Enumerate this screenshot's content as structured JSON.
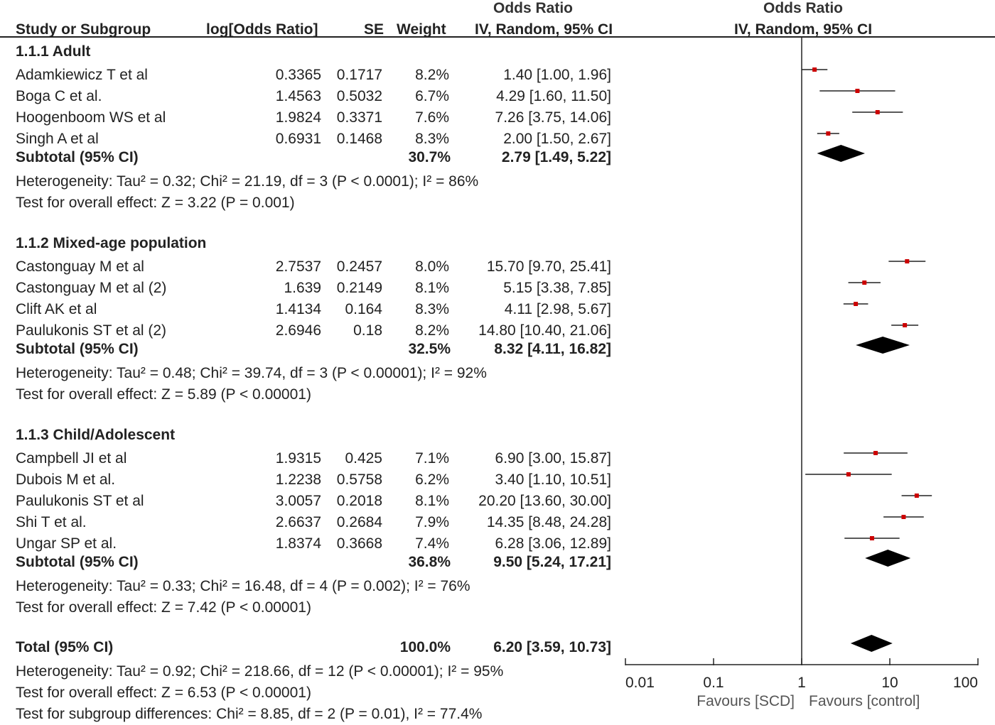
{
  "header": {
    "or_top": "Odds Ratio",
    "study": "Study or Subgroup",
    "logor": "log[Odds Ratio]",
    "se": "SE",
    "weight": "Weight",
    "or_method": "IV, Random, 95% CI",
    "plot_top": "Odds Ratio",
    "plot_method": "IV, Random, 95% CI"
  },
  "groups": [
    {
      "title": "1.1.1 Adult",
      "studies": [
        {
          "name": "Adamkiewicz T et al",
          "logor": "0.3365",
          "se": "0.1717",
          "weight": "8.2%",
          "ci": "1.40 [1.00, 1.96]"
        },
        {
          "name": "Boga C et al.",
          "logor": "1.4563",
          "se": "0.5032",
          "weight": "6.7%",
          "ci": "4.29 [1.60, 11.50]"
        },
        {
          "name": "Hoogenboom WS et al",
          "logor": "1.9824",
          "se": "0.3371",
          "weight": "7.6%",
          "ci": "7.26 [3.75, 14.06]"
        },
        {
          "name": "Singh A et al",
          "logor": "0.6931",
          "se": "0.1468",
          "weight": "8.3%",
          "ci": "2.00 [1.50, 2.67]"
        }
      ],
      "subtotal": {
        "label": "Subtotal (95% CI)",
        "weight": "30.7%",
        "ci": "2.79 [1.49, 5.22]"
      },
      "heterogeneity": "Heterogeneity: Tau² = 0.32; Chi² = 21.19, df = 3 (P < 0.0001); I² = 86%",
      "overall": "Test for overall effect: Z = 3.22 (P = 0.001)"
    },
    {
      "title": "1.1.2 Mixed-age population",
      "studies": [
        {
          "name": "Castonguay M et al",
          "logor": "2.7537",
          "se": "0.2457",
          "weight": "8.0%",
          "ci": "15.70 [9.70, 25.41]"
        },
        {
          "name": "Castonguay M et al (2)",
          "logor": "1.639",
          "se": "0.2149",
          "weight": "8.1%",
          "ci": "5.15 [3.38, 7.85]"
        },
        {
          "name": "Clift AK et al",
          "logor": "1.4134",
          "se": "0.164",
          "weight": "8.3%",
          "ci": "4.11 [2.98, 5.67]"
        },
        {
          "name": "Paulukonis ST et al (2)",
          "logor": "2.6946",
          "se": "0.18",
          "weight": "8.2%",
          "ci": "14.80 [10.40, 21.06]"
        }
      ],
      "subtotal": {
        "label": "Subtotal (95% CI)",
        "weight": "32.5%",
        "ci": "8.32 [4.11, 16.82]"
      },
      "heterogeneity": "Heterogeneity: Tau² = 0.48; Chi² = 39.74, df = 3 (P < 0.00001); I² = 92%",
      "overall": "Test for overall effect: Z = 5.89 (P < 0.00001)"
    },
    {
      "title": "1.1.3 Child/Adolescent",
      "studies": [
        {
          "name": "Campbell JI et al",
          "logor": "1.9315",
          "se": "0.425",
          "weight": "7.1%",
          "ci": "6.90 [3.00, 15.87]"
        },
        {
          "name": "Dubois M et al.",
          "logor": "1.2238",
          "se": "0.5758",
          "weight": "6.2%",
          "ci": "3.40 [1.10, 10.51]"
        },
        {
          "name": "Paulukonis ST et al",
          "logor": "3.0057",
          "se": "0.2018",
          "weight": "8.1%",
          "ci": "20.20 [13.60, 30.00]"
        },
        {
          "name": "Shi T et al.",
          "logor": "2.6637",
          "se": "0.2684",
          "weight": "7.9%",
          "ci": "14.35 [8.48, 24.28]"
        },
        {
          "name": "Ungar SP et al.",
          "logor": "1.8374",
          "se": "0.3668",
          "weight": "7.4%",
          "ci": "6.28 [3.06, 12.89]"
        }
      ],
      "subtotal": {
        "label": "Subtotal (95% CI)",
        "weight": "36.8%",
        "ci": "9.50 [5.24, 17.21]"
      },
      "heterogeneity": "Heterogeneity: Tau² = 0.33; Chi² = 16.48, df = 4 (P = 0.002); I² = 76%",
      "overall": "Test for overall effect: Z = 7.42 (P < 0.00001)"
    }
  ],
  "total": {
    "label": "Total (95% CI)",
    "weight": "100.0%",
    "ci": "6.20 [3.59, 10.73]",
    "heterogeneity": "Heterogeneity: Tau² = 0.92; Chi² = 218.66, df = 12 (P < 0.00001); I² = 95%",
    "overall": "Test for overall effect: Z = 6.53 (P < 0.00001)",
    "subgroup": "Test for subgroup differences: Chi² = 8.85, df = 2 (P = 0.01), I² = 77.4%"
  },
  "axis": {
    "tick_labels": [
      "0.01",
      "0.1",
      "1",
      "10",
      "100"
    ],
    "favours_left": "Favours [SCD]",
    "favours_right": "Favours [control]"
  },
  "colors": {
    "marker": "#cc0000",
    "diamond": "#000000",
    "line": "#222222"
  },
  "chart_data": {
    "type": "forest",
    "scale": "log",
    "xlim": [
      0.01,
      100
    ],
    "ticks": [
      0.01,
      0.1,
      1,
      10,
      100
    ],
    "null_line": 1,
    "studies": [
      {
        "name": "Adamkiewicz T et al",
        "or": 1.4,
        "lo": 1.0,
        "hi": 1.96,
        "weight": 8.2
      },
      {
        "name": "Boga C et al.",
        "or": 4.29,
        "lo": 1.6,
        "hi": 11.5,
        "weight": 6.7
      },
      {
        "name": "Hoogenboom WS et al",
        "or": 7.26,
        "lo": 3.75,
        "hi": 14.06,
        "weight": 7.6
      },
      {
        "name": "Singh A et al",
        "or": 2.0,
        "lo": 1.5,
        "hi": 2.67,
        "weight": 8.3
      },
      {
        "name": "Castonguay M et al",
        "or": 15.7,
        "lo": 9.7,
        "hi": 25.41,
        "weight": 8.0
      },
      {
        "name": "Castonguay M et al (2)",
        "or": 5.15,
        "lo": 3.38,
        "hi": 7.85,
        "weight": 8.1
      },
      {
        "name": "Clift AK et al",
        "or": 4.11,
        "lo": 2.98,
        "hi": 5.67,
        "weight": 8.3
      },
      {
        "name": "Paulukonis ST et al (2)",
        "or": 14.8,
        "lo": 10.4,
        "hi": 21.06,
        "weight": 8.2
      },
      {
        "name": "Campbell JI et al",
        "or": 6.9,
        "lo": 3.0,
        "hi": 15.87,
        "weight": 7.1
      },
      {
        "name": "Dubois M et al.",
        "or": 3.4,
        "lo": 1.1,
        "hi": 10.51,
        "weight": 6.2
      },
      {
        "name": "Paulukonis ST et al",
        "or": 20.2,
        "lo": 13.6,
        "hi": 30.0,
        "weight": 8.1
      },
      {
        "name": "Shi T et al.",
        "or": 14.35,
        "lo": 8.48,
        "hi": 24.28,
        "weight": 7.9
      },
      {
        "name": "Ungar SP et al.",
        "or": 6.28,
        "lo": 3.06,
        "hi": 12.89,
        "weight": 7.4
      }
    ],
    "subtotals": [
      {
        "name": "1.1.1 Adult",
        "or": 2.79,
        "lo": 1.49,
        "hi": 5.22
      },
      {
        "name": "1.1.2 Mixed-age population",
        "or": 8.32,
        "lo": 4.11,
        "hi": 16.82
      },
      {
        "name": "1.1.3 Child/Adolescent",
        "or": 9.5,
        "lo": 5.24,
        "hi": 17.21
      }
    ],
    "total": {
      "or": 6.2,
      "lo": 3.59,
      "hi": 10.73
    }
  }
}
